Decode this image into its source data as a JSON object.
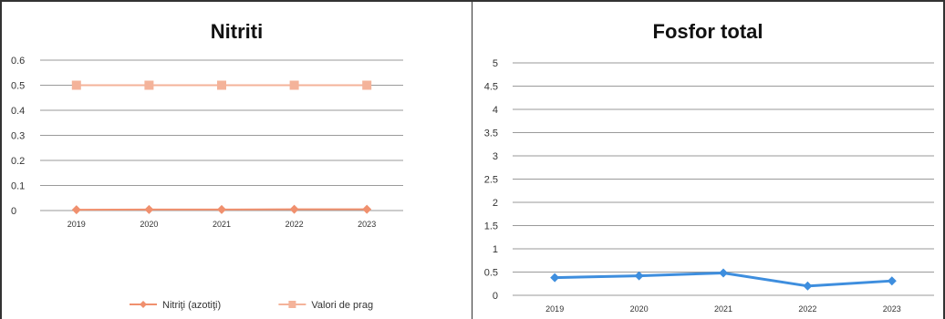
{
  "chart_data": [
    {
      "type": "line",
      "title": "Nitriti",
      "x": [
        "2019",
        "2020",
        "2021",
        "2022",
        "2023"
      ],
      "ylim": [
        0,
        0.6
      ],
      "yticks": [
        "0",
        "0.1",
        "0.2",
        "0.3",
        "0.4",
        "0.5",
        "0.6"
      ],
      "grid": true,
      "legend": "bottom",
      "series": [
        {
          "name": "Nitriţi (azotiţi)",
          "values": [
            0.003,
            0.004,
            0.004,
            0.005,
            0.005
          ],
          "color": "#f0906e",
          "marker": "diamond"
        },
        {
          "name": "Valori de prag",
          "values": [
            0.5,
            0.5,
            0.5,
            0.5,
            0.5
          ],
          "color": "#f4b39a",
          "marker": "square"
        }
      ]
    },
    {
      "type": "line",
      "title": "Fosfor total",
      "x": [
        "2019",
        "2020",
        "2021",
        "2022",
        "2023"
      ],
      "ylim": [
        0,
        5
      ],
      "yticks": [
        "0",
        "0.5",
        "1",
        "1.5",
        "2",
        "2.5",
        "3",
        "3.5",
        "4",
        "4.5",
        "5"
      ],
      "grid": true,
      "legend": "none",
      "series": [
        {
          "name": "",
          "values": [
            0.38,
            0.42,
            0.48,
            0.2,
            0.31
          ],
          "color": "#3e8ede",
          "marker": "diamond"
        }
      ]
    }
  ]
}
